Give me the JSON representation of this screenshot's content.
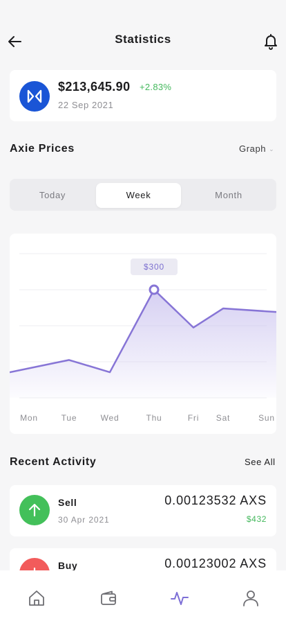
{
  "header": {
    "title": "Statistics"
  },
  "balance": {
    "amount": "$213,645.90",
    "change": "+2.83%",
    "date": "22 Sep 2021"
  },
  "prices": {
    "title": "Axie Prices",
    "view_select": "Graph",
    "tabs": [
      "Today",
      "Week",
      "Month"
    ],
    "active_tab": "Week"
  },
  "chart_data": {
    "type": "area",
    "categories": [
      "Mon",
      "Tue",
      "Wed",
      "Thu",
      "Fri",
      "Sat",
      "Sun"
    ],
    "series": [
      {
        "values": [
          82,
          105,
          71,
          300,
          195,
          248,
          240
        ]
      }
    ],
    "highlight": {
      "category": "Thu",
      "label": "$300"
    },
    "ylim": [
      0,
      400
    ],
    "grid": true,
    "colors": {
      "line": "#8775d6",
      "fill": "#c8c0ee"
    }
  },
  "activity": {
    "title": "Recent Activity",
    "see_all": "See All",
    "items": [
      {
        "type": "Sell",
        "date": "30 Apr 2021",
        "amount": "0.00123532 AXS",
        "value": "$432",
        "icon": "arrow-up-icon",
        "color": "#43c05a"
      },
      {
        "type": "Buy",
        "date": "",
        "amount": "0.00123002 AXS",
        "value": "",
        "icon": "plus-icon",
        "color": "#f25b5b"
      }
    ]
  },
  "nav": {
    "items": [
      {
        "icon": "home-icon"
      },
      {
        "icon": "wallet-icon"
      },
      {
        "icon": "activity-icon"
      },
      {
        "icon": "user-icon"
      }
    ],
    "active_color": "#7d6fd6"
  }
}
